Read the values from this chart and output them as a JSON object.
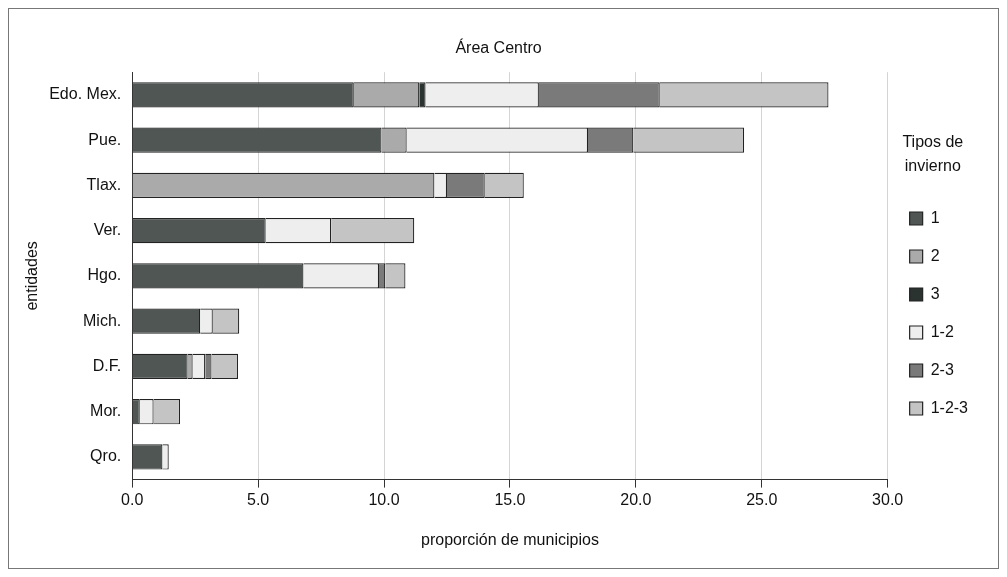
{
  "chart_data": {
    "type": "bar",
    "orientation": "horizontal",
    "stacked": true,
    "title": "Área Centro",
    "xlabel": "proporción de municipios",
    "ylabel": "entidades",
    "legend_title": "Tipos de invierno",
    "legend": "right",
    "grid": "x",
    "categories": [
      "Edo. Mex.",
      "Pue.",
      "Tlax.",
      "Ver.",
      "Hgo.",
      "Mich.",
      "D.F.",
      "Mor.",
      "Qro."
    ],
    "xlim": [
      0,
      30
    ],
    "xticks": [
      {
        "value": 0,
        "label": "0.0"
      },
      {
        "value": 5,
        "label": "5.0"
      },
      {
        "value": 10,
        "label": "10.0"
      },
      {
        "value": 15,
        "label": "15.0"
      },
      {
        "value": 20,
        "label": "20.0"
      },
      {
        "value": 25,
        "label": "25.0"
      },
      {
        "value": 30,
        "label": "30.0"
      }
    ],
    "series": [
      {
        "name": "1",
        "color": "#4f5654",
        "values": [
          8.8,
          9.9,
          0,
          5.3,
          6.8,
          2.7,
          2.2,
          0.3,
          1.2
        ]
      },
      {
        "name": "2",
        "color": "#aaaaaa",
        "values": [
          2.6,
          1.0,
          12.0,
          0,
          0,
          0,
          0.2,
          0,
          0
        ]
      },
      {
        "name": "3",
        "color": "#2b3331",
        "values": [
          0.25,
          0,
          0,
          0,
          0,
          0,
          0,
          0,
          0
        ]
      },
      {
        "name": "1-2",
        "color": "#eeeeee",
        "values": [
          4.5,
          7.2,
          0.5,
          2.6,
          3.0,
          0.5,
          0.5,
          0.55,
          0.25
        ]
      },
      {
        "name": "2-3",
        "color": "#7a7a7a",
        "values": [
          4.8,
          1.8,
          1.5,
          0,
          0.25,
          0,
          0.25,
          0,
          0
        ]
      },
      {
        "name": "1-2-3",
        "color": "#c4c4c4",
        "values": [
          6.7,
          4.4,
          1.55,
          3.3,
          0.8,
          1.05,
          1.05,
          1.05,
          0
        ]
      }
    ]
  }
}
